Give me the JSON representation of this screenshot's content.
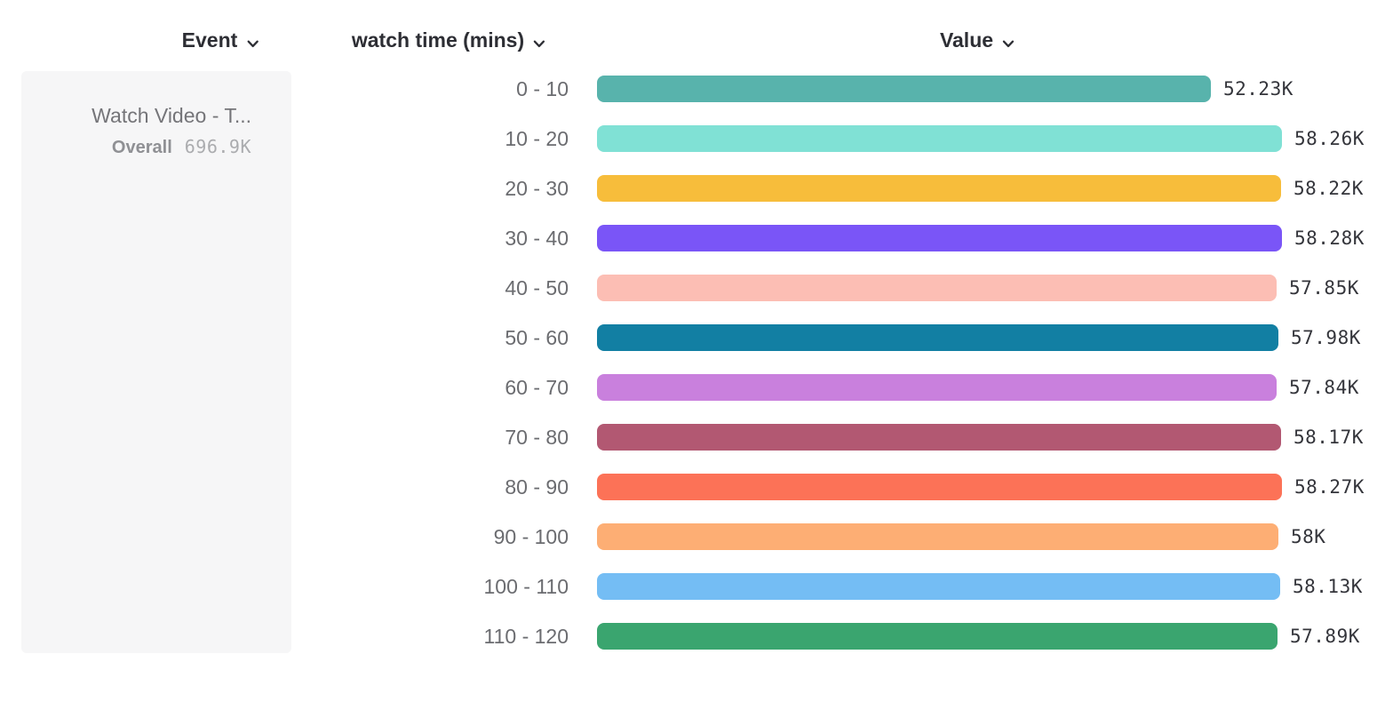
{
  "header": {
    "columns": [
      {
        "label": "Event"
      },
      {
        "label": "watch time (mins)"
      },
      {
        "label": "Value"
      }
    ]
  },
  "legend": {
    "event_title": "Watch Video - T...",
    "overall_label": "Overall",
    "overall_value": "696.9K"
  },
  "chart_data": {
    "type": "bar",
    "orientation": "horizontal",
    "title": "",
    "xlabel": "Value",
    "ylabel": "watch time (mins)",
    "xlim": [
      0,
      58280
    ],
    "grid": false,
    "legend_position": "none",
    "categories": [
      "0 - 10",
      "10 - 20",
      "20 - 30",
      "30 - 40",
      "40 - 50",
      "50 - 60",
      "60 - 70",
      "70 - 80",
      "80 - 90",
      "90 - 100",
      "100 - 110",
      "110 - 120"
    ],
    "values": [
      52230,
      58260,
      58220,
      58280,
      57850,
      57980,
      57840,
      58170,
      58270,
      58000,
      58130,
      57890
    ],
    "value_labels": [
      "52.23K",
      "58.26K",
      "58.22K",
      "58.28K",
      "57.85K",
      "57.98K",
      "57.84K",
      "58.17K",
      "58.27K",
      "58K",
      "58.13K",
      "57.89K"
    ],
    "colors": [
      "#58b3ac",
      "#80e1d5",
      "#f7bd3b",
      "#7a55f7",
      "#fcbeb4",
      "#127fa3",
      "#c980dd",
      "#b25872",
      "#fc7257",
      "#fdae74",
      "#74bdf4",
      "#3aa56f"
    ]
  }
}
